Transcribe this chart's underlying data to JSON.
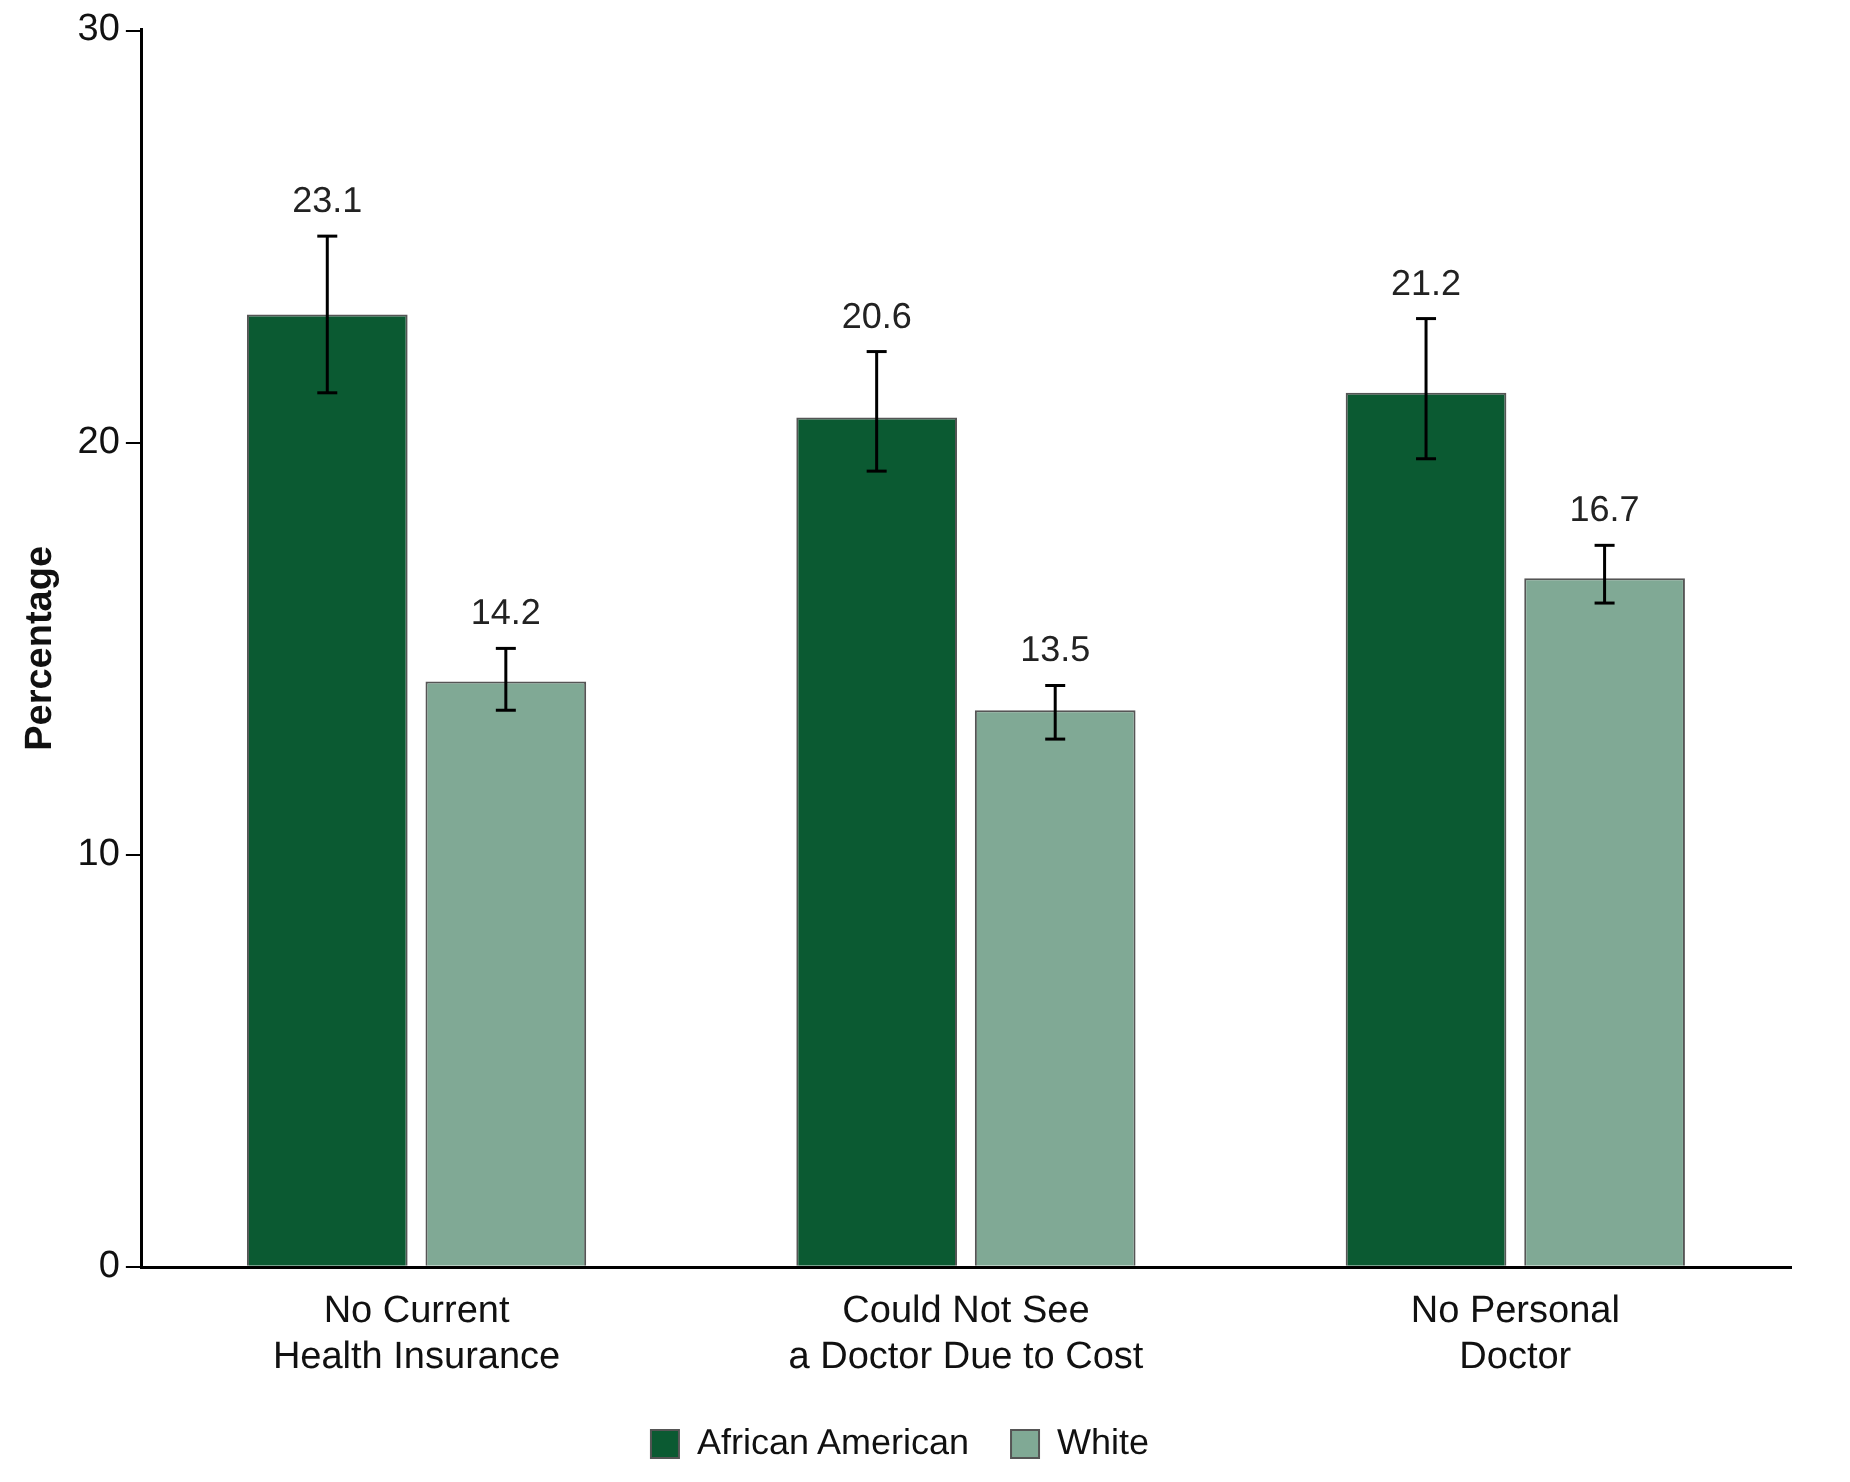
{
  "chart_data": {
    "type": "bar",
    "ylabel": "Percentage",
    "categories": [
      "No Current\nHealth Insurance",
      "Could Not See\na Doctor Due to Cost",
      "No Personal\nDoctor"
    ],
    "series": [
      {
        "name": "African American",
        "color": "#0b5a32",
        "values": [
          23.1,
          20.6,
          21.2
        ],
        "errors": [
          [
            21.2,
            25.0
          ],
          [
            19.3,
            22.2
          ],
          [
            19.6,
            23.0
          ]
        ]
      },
      {
        "name": "White",
        "color": "#80a995",
        "values": [
          14.2,
          13.5,
          16.7
        ],
        "errors": [
          [
            13.5,
            15.0
          ],
          [
            12.8,
            14.1
          ],
          [
            16.1,
            17.5
          ]
        ]
      }
    ],
    "ylim": [
      0,
      30
    ],
    "yticks": [
      0,
      10,
      20,
      30
    ],
    "grid": false,
    "legend": "bottom",
    "data_labels": true
  }
}
